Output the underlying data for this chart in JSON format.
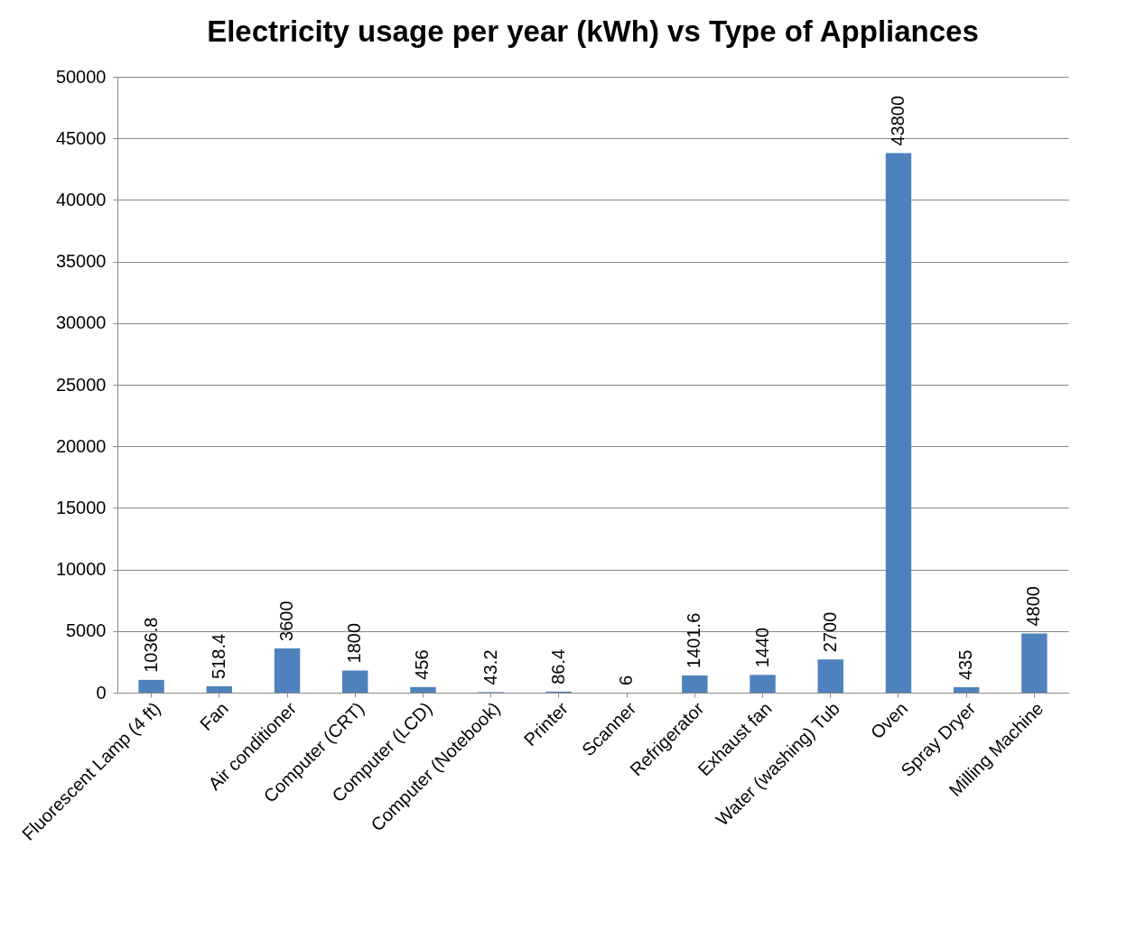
{
  "chart_data": {
    "type": "bar",
    "title": "Electricity usage per year (kWh) vs Type of Appliances",
    "categories": [
      "Fluorescent Lamp (4 ft)",
      "Fan",
      "Air conditioner",
      "Computer (CRT)",
      "Computer (LCD)",
      "Computer (Notebook)",
      "Printer",
      "Scanner",
      "Refrigerator",
      "Exhaust fan",
      "Water (washing) Tub",
      "Oven",
      "Spray Dryer",
      "Milling Machine"
    ],
    "values": [
      1036.8,
      518.4,
      3600,
      1800,
      456,
      43.2,
      86.4,
      6,
      1401.6,
      1440,
      2700,
      43800,
      435,
      4800
    ],
    "color": "#4f81bd",
    "ylim": [
      0,
      50000
    ],
    "yticks": [
      0,
      5000,
      10000,
      15000,
      20000,
      25000,
      30000,
      35000,
      40000,
      45000,
      50000
    ],
    "grid": "y",
    "data_labels": true
  }
}
